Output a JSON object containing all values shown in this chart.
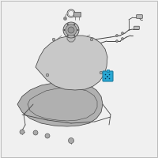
{
  "bg_color": "#f0f0f0",
  "border_color": "#bbbbbb",
  "line_color": "#444444",
  "highlight_color": "#29a8d4",
  "highlight_dark": "#1a7a9e",
  "tank_fill": "#c8c8c8",
  "tank_fill2": "#b8b8b8",
  "shield_fill": "#b0b0b0",
  "part_fill": "#bbbbbb",
  "figsize": [
    2.0,
    2.0
  ],
  "dpi": 100
}
